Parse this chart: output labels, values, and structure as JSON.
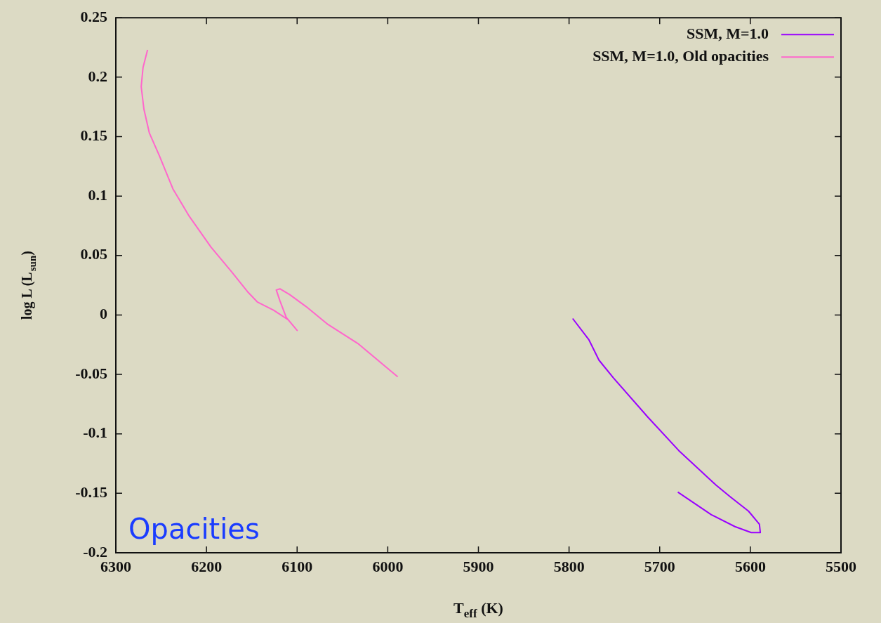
{
  "chart_data": {
    "type": "line",
    "xlabel": "T$_{eff}$ (K)",
    "ylabel": "log L (L$_{sun}$)",
    "xlim": [
      6300,
      5500
    ],
    "xticks": [
      6300,
      6200,
      6100,
      6000,
      5900,
      5800,
      5700,
      5600,
      5500
    ],
    "ylim": [
      -0.2,
      0.25
    ],
    "yticks": [
      -0.2,
      -0.15,
      -0.1,
      -0.05,
      0,
      0.05,
      0.1,
      0.15,
      0.2,
      0.25
    ],
    "legend": "top right",
    "grid": false,
    "marker": "none",
    "line_style": "solid",
    "annotations": [
      "Opacities"
    ],
    "series": [
      {
        "name": "SSM, M=1.0",
        "color": "#9a00ff",
        "x": [
          5796,
          5778,
          5767,
          5751,
          5713,
          5679,
          5638,
          5622,
          5602,
          5590,
          5589,
          5599,
          5617,
          5643,
          5680
        ],
        "values": [
          -0.003,
          -0.021,
          -0.038,
          -0.053,
          -0.086,
          -0.114,
          -0.143,
          -0.153,
          -0.165,
          -0.176,
          -0.183,
          -0.183,
          -0.178,
          -0.168,
          -0.149
        ]
      },
      {
        "name": "SSM, M=1.0, Old opacities",
        "color": "#ff66cc",
        "x": [
          6265,
          6270,
          6272,
          6269,
          6263,
          6252,
          6237,
          6219,
          6195,
          6172,
          6154,
          6144,
          6126,
          6110,
          6100,
          6112,
          6119,
          6123,
          6119,
          6108,
          6090,
          6066,
          6033,
          5989
        ],
        "values": [
          0.223,
          0.208,
          0.192,
          0.173,
          0.153,
          0.134,
          0.106,
          0.083,
          0.057,
          0.036,
          0.019,
          0.011,
          0.004,
          -0.004,
          -0.013,
          -0.002,
          0.012,
          0.021,
          0.022,
          0.017,
          0.007,
          -0.008,
          -0.024,
          -0.052
        ]
      }
    ]
  }
}
